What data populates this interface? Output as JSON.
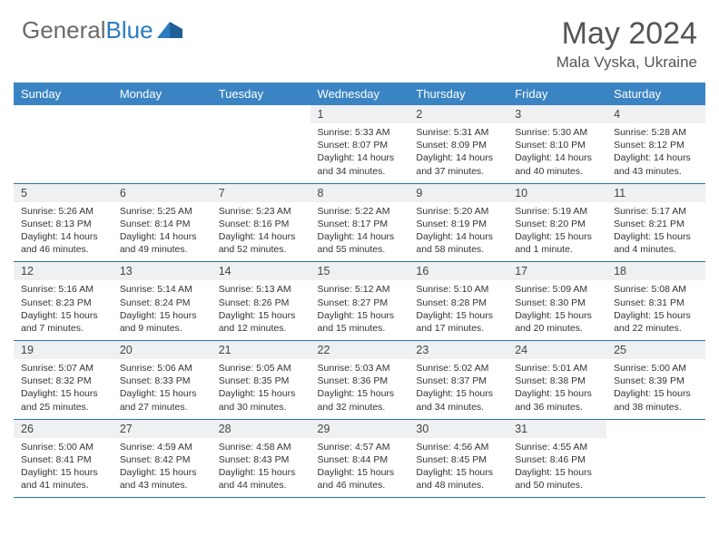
{
  "brand": {
    "part1": "General",
    "part2": "Blue"
  },
  "title": "May 2024",
  "location": "Mala Vyska, Ukraine",
  "colors": {
    "header_bg": "#3b84c4",
    "header_text": "#ffffff",
    "daynum_bg": "#eef0f2",
    "rule": "#2f6fa7",
    "brand_gray": "#6a6a6a",
    "brand_blue": "#2a7bbf"
  },
  "weekdays": [
    "Sunday",
    "Monday",
    "Tuesday",
    "Wednesday",
    "Thursday",
    "Friday",
    "Saturday"
  ],
  "weeks": [
    [
      null,
      null,
      null,
      {
        "n": "1",
        "sr": "5:33 AM",
        "ss": "8:07 PM",
        "dl": "14 hours and 34 minutes."
      },
      {
        "n": "2",
        "sr": "5:31 AM",
        "ss": "8:09 PM",
        "dl": "14 hours and 37 minutes."
      },
      {
        "n": "3",
        "sr": "5:30 AM",
        "ss": "8:10 PM",
        "dl": "14 hours and 40 minutes."
      },
      {
        "n": "4",
        "sr": "5:28 AM",
        "ss": "8:12 PM",
        "dl": "14 hours and 43 minutes."
      }
    ],
    [
      {
        "n": "5",
        "sr": "5:26 AM",
        "ss": "8:13 PM",
        "dl": "14 hours and 46 minutes."
      },
      {
        "n": "6",
        "sr": "5:25 AM",
        "ss": "8:14 PM",
        "dl": "14 hours and 49 minutes."
      },
      {
        "n": "7",
        "sr": "5:23 AM",
        "ss": "8:16 PM",
        "dl": "14 hours and 52 minutes."
      },
      {
        "n": "8",
        "sr": "5:22 AM",
        "ss": "8:17 PM",
        "dl": "14 hours and 55 minutes."
      },
      {
        "n": "9",
        "sr": "5:20 AM",
        "ss": "8:19 PM",
        "dl": "14 hours and 58 minutes."
      },
      {
        "n": "10",
        "sr": "5:19 AM",
        "ss": "8:20 PM",
        "dl": "15 hours and 1 minute."
      },
      {
        "n": "11",
        "sr": "5:17 AM",
        "ss": "8:21 PM",
        "dl": "15 hours and 4 minutes."
      }
    ],
    [
      {
        "n": "12",
        "sr": "5:16 AM",
        "ss": "8:23 PM",
        "dl": "15 hours and 7 minutes."
      },
      {
        "n": "13",
        "sr": "5:14 AM",
        "ss": "8:24 PM",
        "dl": "15 hours and 9 minutes."
      },
      {
        "n": "14",
        "sr": "5:13 AM",
        "ss": "8:26 PM",
        "dl": "15 hours and 12 minutes."
      },
      {
        "n": "15",
        "sr": "5:12 AM",
        "ss": "8:27 PM",
        "dl": "15 hours and 15 minutes."
      },
      {
        "n": "16",
        "sr": "5:10 AM",
        "ss": "8:28 PM",
        "dl": "15 hours and 17 minutes."
      },
      {
        "n": "17",
        "sr": "5:09 AM",
        "ss": "8:30 PM",
        "dl": "15 hours and 20 minutes."
      },
      {
        "n": "18",
        "sr": "5:08 AM",
        "ss": "8:31 PM",
        "dl": "15 hours and 22 minutes."
      }
    ],
    [
      {
        "n": "19",
        "sr": "5:07 AM",
        "ss": "8:32 PM",
        "dl": "15 hours and 25 minutes."
      },
      {
        "n": "20",
        "sr": "5:06 AM",
        "ss": "8:33 PM",
        "dl": "15 hours and 27 minutes."
      },
      {
        "n": "21",
        "sr": "5:05 AM",
        "ss": "8:35 PM",
        "dl": "15 hours and 30 minutes."
      },
      {
        "n": "22",
        "sr": "5:03 AM",
        "ss": "8:36 PM",
        "dl": "15 hours and 32 minutes."
      },
      {
        "n": "23",
        "sr": "5:02 AM",
        "ss": "8:37 PM",
        "dl": "15 hours and 34 minutes."
      },
      {
        "n": "24",
        "sr": "5:01 AM",
        "ss": "8:38 PM",
        "dl": "15 hours and 36 minutes."
      },
      {
        "n": "25",
        "sr": "5:00 AM",
        "ss": "8:39 PM",
        "dl": "15 hours and 38 minutes."
      }
    ],
    [
      {
        "n": "26",
        "sr": "5:00 AM",
        "ss": "8:41 PM",
        "dl": "15 hours and 41 minutes."
      },
      {
        "n": "27",
        "sr": "4:59 AM",
        "ss": "8:42 PM",
        "dl": "15 hours and 43 minutes."
      },
      {
        "n": "28",
        "sr": "4:58 AM",
        "ss": "8:43 PM",
        "dl": "15 hours and 44 minutes."
      },
      {
        "n": "29",
        "sr": "4:57 AM",
        "ss": "8:44 PM",
        "dl": "15 hours and 46 minutes."
      },
      {
        "n": "30",
        "sr": "4:56 AM",
        "ss": "8:45 PM",
        "dl": "15 hours and 48 minutes."
      },
      {
        "n": "31",
        "sr": "4:55 AM",
        "ss": "8:46 PM",
        "dl": "15 hours and 50 minutes."
      },
      null
    ]
  ],
  "labels": {
    "sunrise": "Sunrise:",
    "sunset": "Sunset:",
    "daylight": "Daylight:"
  }
}
